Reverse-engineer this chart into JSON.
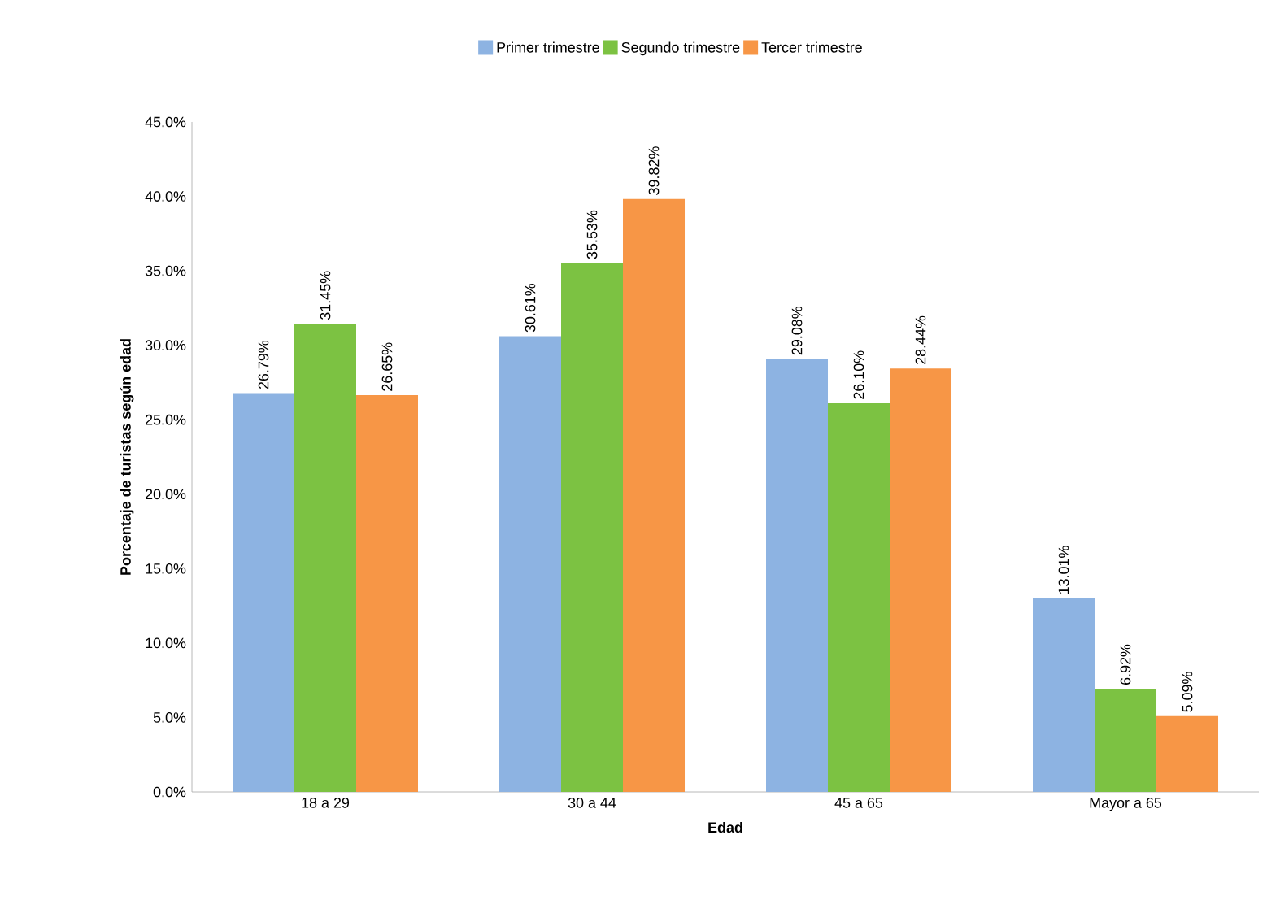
{
  "chart_data": {
    "type": "bar",
    "xlabel": "Edad",
    "ylabel": "Porcentaje de turistas según edad",
    "categories": [
      "18 a 29",
      "30 a 44",
      "45 a 65",
      "Mayor a 65"
    ],
    "series": [
      {
        "name": "Primer trimestre",
        "color": "#8db3e2",
        "values": [
          26.79,
          30.61,
          29.08,
          13.01
        ],
        "value_labels": [
          "26.79%",
          "30.61%",
          "29.08%",
          "13.01%"
        ]
      },
      {
        "name": "Segundo trimestre",
        "color": "#7cc242",
        "values": [
          31.45,
          35.53,
          26.1,
          6.92
        ],
        "value_labels": [
          "31.45%",
          "35.53%",
          "26.10%",
          "6.92%"
        ]
      },
      {
        "name": "Tercer trimestre",
        "color": "#f79646",
        "values": [
          26.65,
          39.82,
          28.44,
          5.09
        ],
        "value_labels": [
          "26.65%",
          "39.82%",
          "28.44%",
          "5.09%"
        ]
      }
    ],
    "ylim": [
      0,
      45
    ],
    "yticks": [
      {
        "value": 0,
        "label": "0.0%"
      },
      {
        "value": 5,
        "label": "5.0%"
      },
      {
        "value": 10,
        "label": "10.0%"
      },
      {
        "value": 15,
        "label": "15.0%"
      },
      {
        "value": 20,
        "label": "20.0%"
      },
      {
        "value": 25,
        "label": "25.0%"
      },
      {
        "value": 30,
        "label": "30.0%"
      },
      {
        "value": 35,
        "label": "35.0%"
      },
      {
        "value": 40,
        "label": "40.0%"
      },
      {
        "value": 45,
        "label": "45.0%"
      }
    ],
    "legend": "top",
    "grid": false
  }
}
